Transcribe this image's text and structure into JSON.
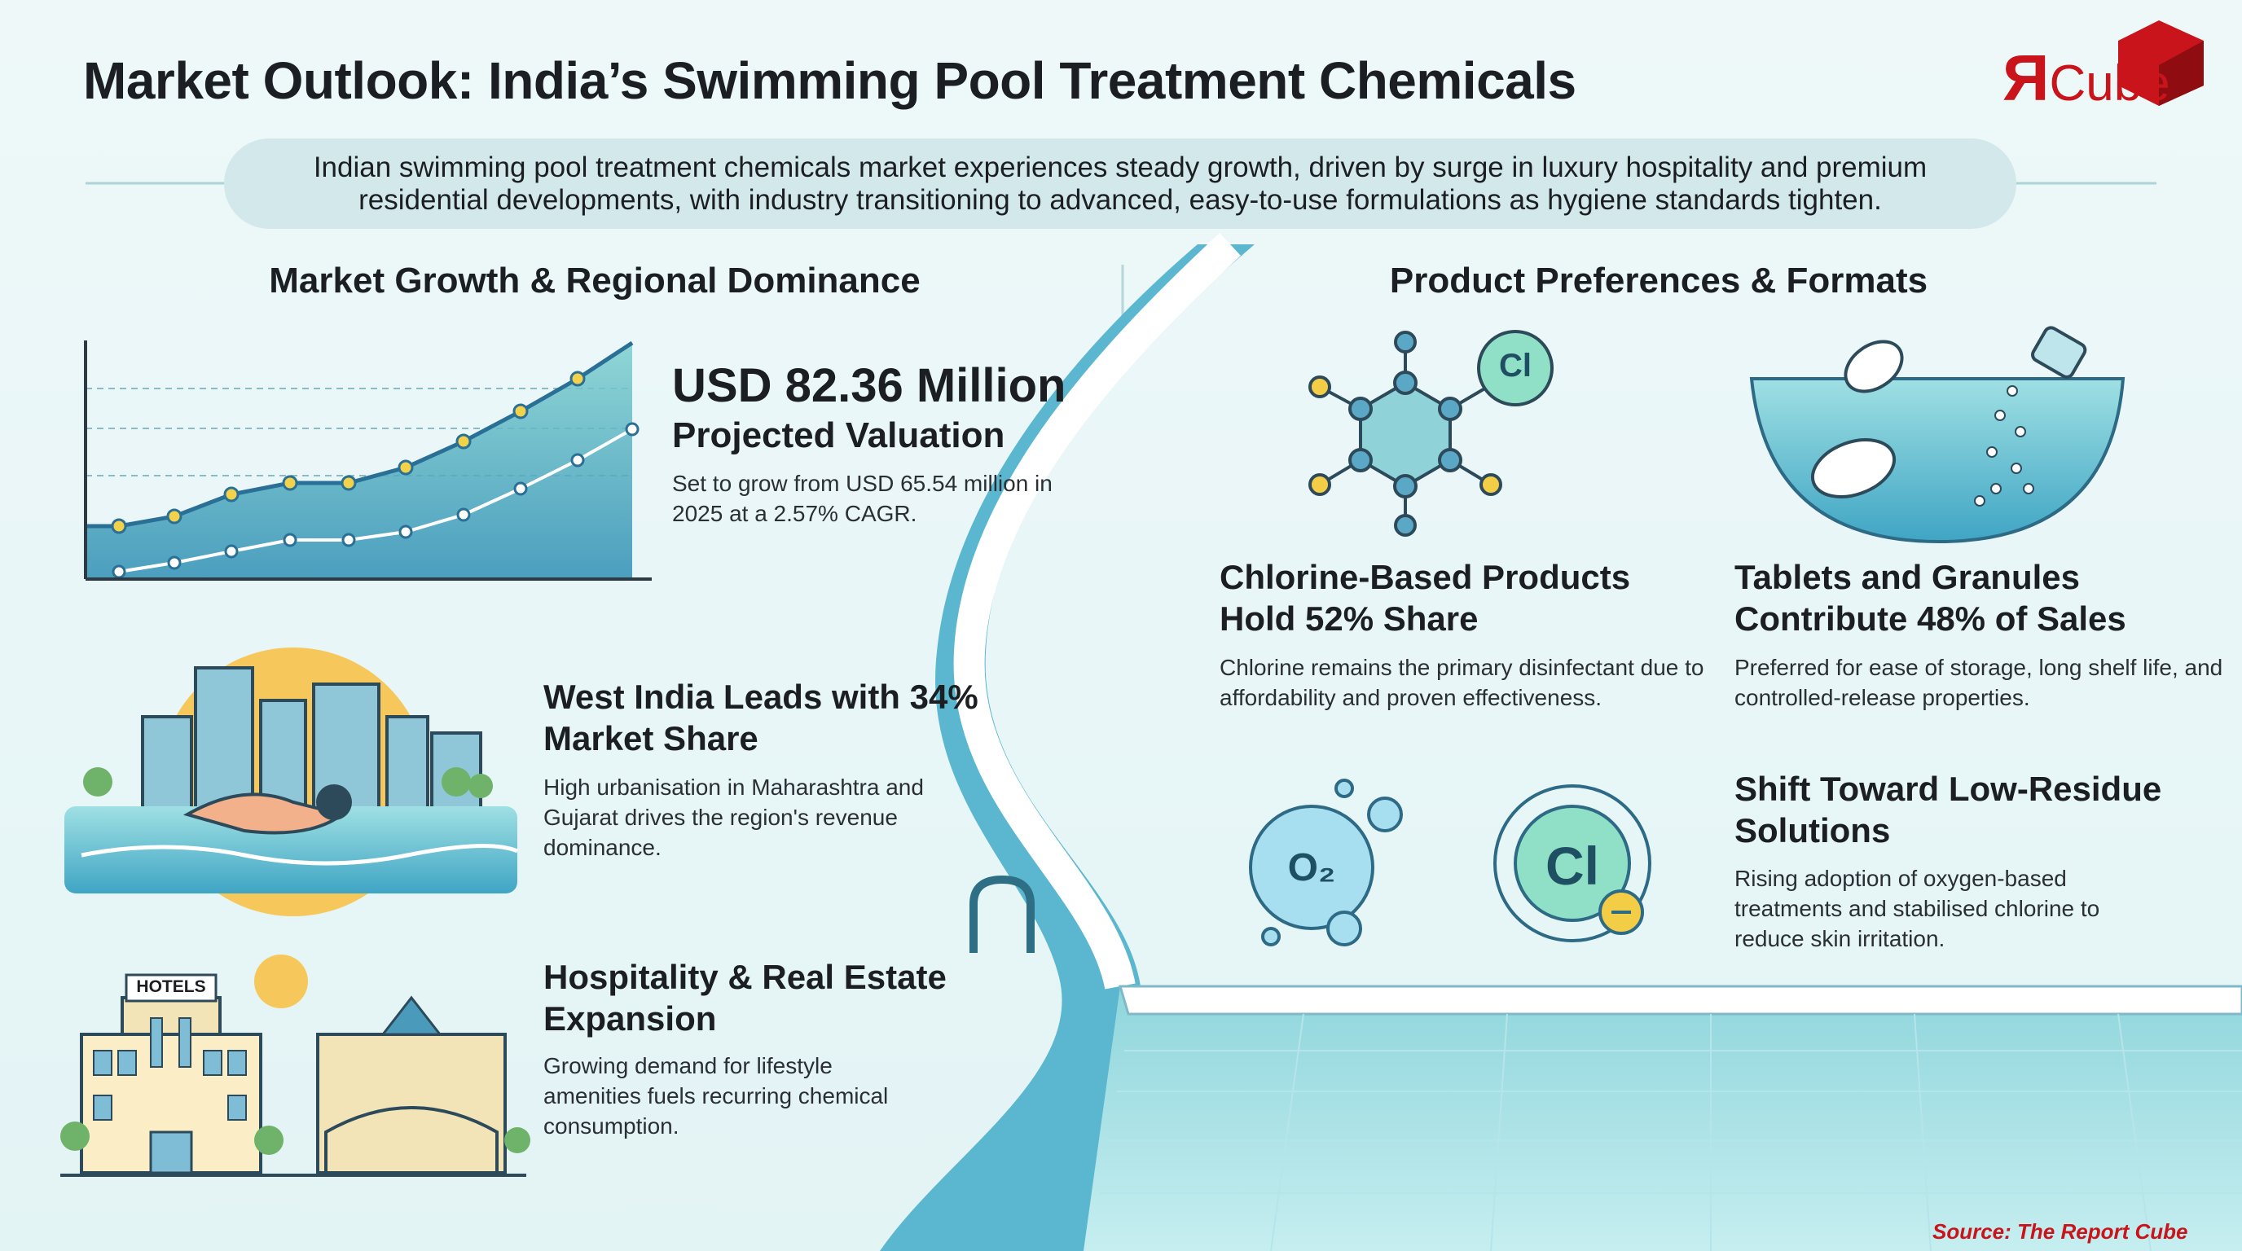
{
  "header": {
    "title": "Market Outlook: India’s Swimming Pool Treatment Chemicals",
    "logo": {
      "mark": "Я",
      "text": "Cube"
    },
    "summary": "Indian swimming pool treatment chemicals market experiences steady growth, driven by surge in luxury hospitality and premium residential developments, with industry transitioning to advanced, easy-to-use formulations as hygiene standards tighten."
  },
  "left": {
    "heading": "Market Growth & Regional Dominance",
    "valuation": {
      "title": "USD 82.36 Million",
      "subtitle": "Projected Valuation",
      "body": "Set to grow from USD 65.54 million in 2025 at a 2.57% CAGR."
    },
    "items": [
      {
        "title": "West India Leads with 34% Market Share",
        "body": "High urbanisation in Maharashtra and Gujarat drives the region's revenue dominance."
      },
      {
        "title": "Hospitality & Real Estate Expansion",
        "body": "Growing demand for lifestyle amenities fuels recurring chemical consumption."
      }
    ],
    "hotel_sign": "HOTELS"
  },
  "right": {
    "heading": "Product Preferences & Formats",
    "items": [
      {
        "title": "Chlorine-Based Products Hold 52% Share",
        "body": "Chlorine remains the primary disinfectant due to affordability and proven effectiveness."
      },
      {
        "title": "Tablets and Granules Contribute 48% of Sales",
        "body": "Preferred for ease of storage, long shelf life, and controlled-release properties."
      },
      {
        "title": "Shift Toward Low-Residue Solutions",
        "body": "Rising adoption of oxygen-based treatments and stabilised chlorine to reduce skin irritation."
      }
    ],
    "icons": {
      "chlorine": "Cl",
      "oxygen": "O₂"
    }
  },
  "source": "Source: The Report Cube"
}
